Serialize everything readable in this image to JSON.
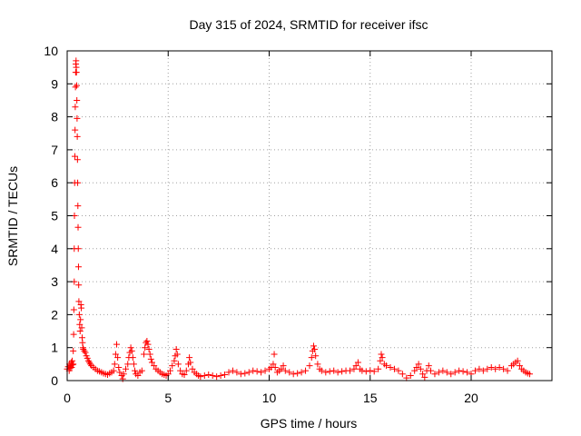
{
  "chart_data": {
    "type": "scatter",
    "title": "Day 315 of 2024, SRMTID for receiver ifsc",
    "xlabel": "GPS time / hours",
    "ylabel": "SRMTID / TECUs",
    "xlim": [
      0,
      24
    ],
    "ylim": [
      0,
      10
    ],
    "x_ticks": [
      0,
      5,
      10,
      15,
      20
    ],
    "y_ticks": [
      0,
      1,
      2,
      3,
      4,
      5,
      6,
      7,
      8,
      9,
      10
    ],
    "x_tick_labels": [
      "0",
      "5",
      "10",
      "15",
      "20"
    ],
    "y_tick_labels": [
      "0",
      "1",
      "2",
      "3",
      "4",
      "5",
      "6",
      "7",
      "8",
      "9",
      "10"
    ],
    "grid": true,
    "marker": "plus",
    "color": "#ff0000",
    "series": [
      {
        "name": "SRMTID",
        "points": [
          [
            0.0,
            0.35
          ],
          [
            0.05,
            0.42
          ],
          [
            0.1,
            0.3
          ],
          [
            0.12,
            0.5
          ],
          [
            0.15,
            0.38
          ],
          [
            0.18,
            0.45
          ],
          [
            0.2,
            0.55
          ],
          [
            0.22,
            0.4
          ],
          [
            0.25,
            0.6
          ],
          [
            0.27,
            0.48
          ],
          [
            0.3,
            0.5
          ],
          [
            0.3,
            0.9
          ],
          [
            0.32,
            1.4
          ],
          [
            0.33,
            2.15
          ],
          [
            0.35,
            3.0
          ],
          [
            0.35,
            4.0
          ],
          [
            0.36,
            5.0
          ],
          [
            0.37,
            6.0
          ],
          [
            0.38,
            6.8
          ],
          [
            0.39,
            7.6
          ],
          [
            0.4,
            8.3
          ],
          [
            0.41,
            8.9
          ],
          [
            0.42,
            9.35
          ],
          [
            0.43,
            9.6
          ],
          [
            0.44,
            9.7
          ],
          [
            0.45,
            9.5
          ],
          [
            0.46,
            9.35
          ],
          [
            0.47,
            8.95
          ],
          [
            0.48,
            8.5
          ],
          [
            0.49,
            7.95
          ],
          [
            0.5,
            7.4
          ],
          [
            0.51,
            6.7
          ],
          [
            0.52,
            6.0
          ],
          [
            0.53,
            5.3
          ],
          [
            0.54,
            4.65
          ],
          [
            0.55,
            4.0
          ],
          [
            0.56,
            3.45
          ],
          [
            0.57,
            2.9
          ],
          [
            0.58,
            2.4
          ],
          [
            0.6,
            2.0
          ],
          [
            0.62,
            1.7
          ],
          [
            0.64,
            1.5
          ],
          [
            0.66,
            1.85
          ],
          [
            0.68,
            2.3
          ],
          [
            0.7,
            2.2
          ],
          [
            0.72,
            1.6
          ],
          [
            0.74,
            1.3
          ],
          [
            0.76,
            1.15
          ],
          [
            0.78,
            1.0
          ],
          [
            0.8,
            0.95
          ],
          [
            0.85,
            0.9
          ],
          [
            0.9,
            0.85
          ],
          [
            0.95,
            0.75
          ],
          [
            1.0,
            0.68
          ],
          [
            1.05,
            0.6
          ],
          [
            1.1,
            0.55
          ],
          [
            1.15,
            0.5
          ],
          [
            1.2,
            0.45
          ],
          [
            1.3,
            0.4
          ],
          [
            1.4,
            0.35
          ],
          [
            1.5,
            0.3
          ],
          [
            1.6,
            0.28
          ],
          [
            1.7,
            0.25
          ],
          [
            1.8,
            0.22
          ],
          [
            1.9,
            0.2
          ],
          [
            2.0,
            0.18
          ],
          [
            2.1,
            0.22
          ],
          [
            2.2,
            0.25
          ],
          [
            2.3,
            0.3
          ],
          [
            2.35,
            0.5
          ],
          [
            2.4,
            0.8
          ],
          [
            2.45,
            1.1
          ],
          [
            2.5,
            0.7
          ],
          [
            2.55,
            0.4
          ],
          [
            2.6,
            0.25
          ],
          [
            2.7,
            0.15
          ],
          [
            2.75,
            0.05
          ],
          [
            2.8,
            0.2
          ],
          [
            2.9,
            0.35
          ],
          [
            3.0,
            0.5
          ],
          [
            3.05,
            0.7
          ],
          [
            3.1,
            0.85
          ],
          [
            3.15,
            1.0
          ],
          [
            3.2,
            0.9
          ],
          [
            3.25,
            0.7
          ],
          [
            3.3,
            0.5
          ],
          [
            3.35,
            0.3
          ],
          [
            3.4,
            0.2
          ],
          [
            3.5,
            0.15
          ],
          [
            3.6,
            0.25
          ],
          [
            3.7,
            0.3
          ],
          [
            3.8,
            0.8
          ],
          [
            3.85,
            1.0
          ],
          [
            3.9,
            1.15
          ],
          [
            3.95,
            1.2
          ],
          [
            4.0,
            1.1
          ],
          [
            4.05,
            0.95
          ],
          [
            4.1,
            0.8
          ],
          [
            4.15,
            0.65
          ],
          [
            4.2,
            0.55
          ],
          [
            4.3,
            0.45
          ],
          [
            4.4,
            0.35
          ],
          [
            4.5,
            0.3
          ],
          [
            4.6,
            0.25
          ],
          [
            4.7,
            0.2
          ],
          [
            4.8,
            0.18
          ],
          [
            4.9,
            0.15
          ],
          [
            5.0,
            0.2
          ],
          [
            5.1,
            0.3
          ],
          [
            5.2,
            0.45
          ],
          [
            5.3,
            0.6
          ],
          [
            5.35,
            0.75
          ],
          [
            5.4,
            0.95
          ],
          [
            5.45,
            0.8
          ],
          [
            5.5,
            0.5
          ],
          [
            5.6,
            0.3
          ],
          [
            5.7,
            0.2
          ],
          [
            5.8,
            0.18
          ],
          [
            5.9,
            0.3
          ],
          [
            6.0,
            0.5
          ],
          [
            6.05,
            0.7
          ],
          [
            6.1,
            0.55
          ],
          [
            6.2,
            0.35
          ],
          [
            6.3,
            0.25
          ],
          [
            6.4,
            0.2
          ],
          [
            6.5,
            0.15
          ],
          [
            6.6,
            0.12
          ],
          [
            6.8,
            0.15
          ],
          [
            7.0,
            0.18
          ],
          [
            7.2,
            0.15
          ],
          [
            7.4,
            0.12
          ],
          [
            7.6,
            0.15
          ],
          [
            7.8,
            0.18
          ],
          [
            8.0,
            0.25
          ],
          [
            8.2,
            0.3
          ],
          [
            8.4,
            0.25
          ],
          [
            8.6,
            0.2
          ],
          [
            8.8,
            0.22
          ],
          [
            9.0,
            0.25
          ],
          [
            9.2,
            0.3
          ],
          [
            9.4,
            0.28
          ],
          [
            9.6,
            0.25
          ],
          [
            9.8,
            0.3
          ],
          [
            10.0,
            0.35
          ],
          [
            10.1,
            0.4
          ],
          [
            10.2,
            0.5
          ],
          [
            10.25,
            0.8
          ],
          [
            10.3,
            0.4
          ],
          [
            10.4,
            0.25
          ],
          [
            10.5,
            0.3
          ],
          [
            10.6,
            0.35
          ],
          [
            10.7,
            0.45
          ],
          [
            10.8,
            0.3
          ],
          [
            11.0,
            0.25
          ],
          [
            11.2,
            0.2
          ],
          [
            11.4,
            0.22
          ],
          [
            11.6,
            0.25
          ],
          [
            11.8,
            0.3
          ],
          [
            12.0,
            0.45
          ],
          [
            12.1,
            0.7
          ],
          [
            12.15,
            0.9
          ],
          [
            12.2,
            1.05
          ],
          [
            12.25,
            0.95
          ],
          [
            12.3,
            0.75
          ],
          [
            12.4,
            0.5
          ],
          [
            12.5,
            0.35
          ],
          [
            12.6,
            0.3
          ],
          [
            12.8,
            0.25
          ],
          [
            13.0,
            0.28
          ],
          [
            13.2,
            0.3
          ],
          [
            13.4,
            0.25
          ],
          [
            13.6,
            0.28
          ],
          [
            13.8,
            0.3
          ],
          [
            14.0,
            0.3
          ],
          [
            14.2,
            0.35
          ],
          [
            14.3,
            0.45
          ],
          [
            14.4,
            0.55
          ],
          [
            14.5,
            0.35
          ],
          [
            14.6,
            0.3
          ],
          [
            14.8,
            0.28
          ],
          [
            15.0,
            0.3
          ],
          [
            15.2,
            0.28
          ],
          [
            15.4,
            0.35
          ],
          [
            15.5,
            0.6
          ],
          [
            15.55,
            0.8
          ],
          [
            15.6,
            0.7
          ],
          [
            15.7,
            0.5
          ],
          [
            15.8,
            0.45
          ],
          [
            16.0,
            0.4
          ],
          [
            16.2,
            0.35
          ],
          [
            16.4,
            0.3
          ],
          [
            16.6,
            0.2
          ],
          [
            16.8,
            0.08
          ],
          [
            17.0,
            0.15
          ],
          [
            17.2,
            0.3
          ],
          [
            17.3,
            0.4
          ],
          [
            17.4,
            0.5
          ],
          [
            17.5,
            0.35
          ],
          [
            17.6,
            0.2
          ],
          [
            17.7,
            0.1
          ],
          [
            17.8,
            0.3
          ],
          [
            17.9,
            0.45
          ],
          [
            18.0,
            0.3
          ],
          [
            18.2,
            0.2
          ],
          [
            18.4,
            0.25
          ],
          [
            18.6,
            0.3
          ],
          [
            18.8,
            0.25
          ],
          [
            19.0,
            0.2
          ],
          [
            19.2,
            0.25
          ],
          [
            19.4,
            0.3
          ],
          [
            19.6,
            0.28
          ],
          [
            19.8,
            0.25
          ],
          [
            20.0,
            0.2
          ],
          [
            20.2,
            0.3
          ],
          [
            20.4,
            0.35
          ],
          [
            20.6,
            0.3
          ],
          [
            20.8,
            0.35
          ],
          [
            21.0,
            0.4
          ],
          [
            21.2,
            0.35
          ],
          [
            21.4,
            0.4
          ],
          [
            21.6,
            0.35
          ],
          [
            21.8,
            0.3
          ],
          [
            22.0,
            0.45
          ],
          [
            22.1,
            0.5
          ],
          [
            22.2,
            0.55
          ],
          [
            22.3,
            0.6
          ],
          [
            22.4,
            0.45
          ],
          [
            22.5,
            0.35
          ],
          [
            22.6,
            0.3
          ],
          [
            22.7,
            0.25
          ],
          [
            22.8,
            0.22
          ],
          [
            22.9,
            0.2
          ]
        ]
      }
    ]
  }
}
